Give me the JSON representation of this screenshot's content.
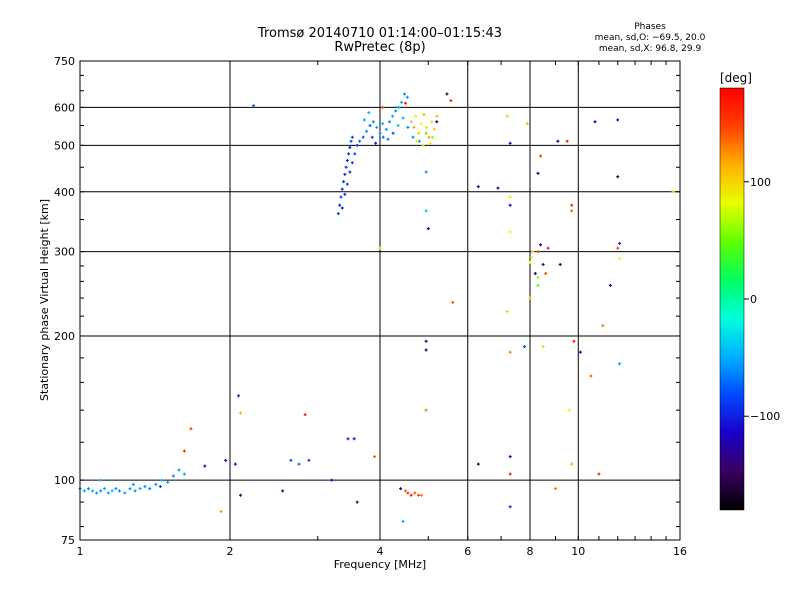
{
  "header": {
    "title_line1": "Tromsø 20140710 01:14:00–01:15:43",
    "title_line2": "RwPretec (8p)",
    "phase_title": "Phases",
    "phase_line1": "mean, sd,O: −69.5, 20.0",
    "phase_line2": "mean, sd,X:  96.8, 29.9"
  },
  "colorbar": {
    "unit_label": "[deg]",
    "ticks": [
      {
        "value": 100,
        "label": "100"
      },
      {
        "value": 0,
        "label": "0"
      },
      {
        "value": -100,
        "label": "−100"
      }
    ],
    "range": [
      -180,
      180
    ],
    "colors": [
      "#000000",
      "#3a0060",
      "#1a00c8",
      "#0048ff",
      "#00b0ff",
      "#00ffdc",
      "#00ff60",
      "#60ff00",
      "#e8ff00",
      "#ffb000",
      "#ff4000",
      "#ff0000"
    ]
  },
  "chart_data": {
    "type": "scatter",
    "xlabel": "Frequency [MHz]",
    "ylabel": "Stationary phase Virtual Height [km]",
    "x_scale": "log",
    "y_scale": "log",
    "xlim": [
      1,
      16
    ],
    "ylim": [
      75,
      750
    ],
    "x_ticks": [
      {
        "value": 1,
        "label": "1"
      },
      {
        "value": 2,
        "label": "2"
      },
      {
        "value": 4,
        "label": "4"
      },
      {
        "value": 6,
        "label": "6"
      },
      {
        "value": 8,
        "label": "8"
      },
      {
        "value": 10,
        "label": "10"
      },
      {
        "value": 16,
        "label": "16"
      }
    ],
    "y_ticks": [
      {
        "value": 75,
        "label": "75"
      },
      {
        "value": 100,
        "label": "100"
      },
      {
        "value": 200,
        "label": "200"
      },
      {
        "value": 300,
        "label": "300"
      },
      {
        "value": 400,
        "label": "400"
      },
      {
        "value": 500,
        "label": "500"
      },
      {
        "value": 600,
        "label": "600"
      },
      {
        "value": 750,
        "label": "750"
      }
    ],
    "gridlines_x": [
      2,
      4,
      6,
      8,
      10
    ],
    "gridlines_y": [
      100,
      200,
      300,
      400,
      500,
      600
    ],
    "grid": true,
    "points": [
      {
        "f": 1.0,
        "h": 96,
        "p": -60
      },
      {
        "f": 1.02,
        "h": 95,
        "p": -55
      },
      {
        "f": 1.04,
        "h": 96,
        "p": -60
      },
      {
        "f": 1.06,
        "h": 95,
        "p": -50
      },
      {
        "f": 1.08,
        "h": 94,
        "p": -55
      },
      {
        "f": 1.1,
        "h": 95,
        "p": -60
      },
      {
        "f": 1.12,
        "h": 96,
        "p": -50
      },
      {
        "f": 1.14,
        "h": 94,
        "p": -55
      },
      {
        "f": 1.16,
        "h": 95,
        "p": -45
      },
      {
        "f": 1.18,
        "h": 96,
        "p": -55
      },
      {
        "f": 1.2,
        "h": 95,
        "p": -60
      },
      {
        "f": 1.23,
        "h": 94,
        "p": -50
      },
      {
        "f": 1.26,
        "h": 96,
        "p": -55
      },
      {
        "f": 1.29,
        "h": 95,
        "p": -60
      },
      {
        "f": 1.32,
        "h": 96,
        "p": -50
      },
      {
        "f": 1.35,
        "h": 97,
        "p": -55
      },
      {
        "f": 1.38,
        "h": 96,
        "p": -60
      },
      {
        "f": 1.42,
        "h": 98,
        "p": -55
      },
      {
        "f": 1.46,
        "h": 100,
        "p": -50
      },
      {
        "f": 1.5,
        "h": 99,
        "p": -55
      },
      {
        "f": 1.54,
        "h": 102,
        "p": -60
      },
      {
        "f": 1.58,
        "h": 105,
        "p": -55
      },
      {
        "f": 1.62,
        "h": 103,
        "p": -50
      },
      {
        "f": 1.1,
        "h": 100,
        "p": -50
      },
      {
        "f": 1.28,
        "h": 98,
        "p": -55
      },
      {
        "f": 1.45,
        "h": 97,
        "p": -80
      },
      {
        "f": 1.62,
        "h": 115,
        "p": 160
      },
      {
        "f": 1.67,
        "h": 128,
        "p": 150
      },
      {
        "f": 1.78,
        "h": 107,
        "p": -130
      },
      {
        "f": 1.92,
        "h": 86,
        "p": 120
      },
      {
        "f": 1.96,
        "h": 110,
        "p": -120
      },
      {
        "f": 2.05,
        "h": 108,
        "p": -110
      },
      {
        "f": 2.08,
        "h": 150,
        "p": -100
      },
      {
        "f": 2.1,
        "h": 93,
        "p": -140
      },
      {
        "f": 2.1,
        "h": 138,
        "p": 110
      },
      {
        "f": 2.23,
        "h": 605,
        "p": -80
      },
      {
        "f": 2.55,
        "h": 95,
        "p": -140
      },
      {
        "f": 2.65,
        "h": 110,
        "p": -80
      },
      {
        "f": 2.75,
        "h": 108,
        "p": -70
      },
      {
        "f": 2.83,
        "h": 137,
        "p": 170
      },
      {
        "f": 2.88,
        "h": 110,
        "p": -90
      },
      {
        "f": 3.2,
        "h": 100,
        "p": -110
      },
      {
        "f": 3.45,
        "h": 122,
        "p": -100
      },
      {
        "f": 3.55,
        "h": 122,
        "p": -110
      },
      {
        "f": 3.6,
        "h": 90,
        "p": -150
      },
      {
        "f": 3.9,
        "h": 112,
        "p": 140
      },
      {
        "f": 4.0,
        "h": 305,
        "p": 100
      },
      {
        "f": 3.3,
        "h": 360,
        "p": -90
      },
      {
        "f": 3.32,
        "h": 375,
        "p": -100
      },
      {
        "f": 3.34,
        "h": 390,
        "p": -85
      },
      {
        "f": 3.36,
        "h": 405,
        "p": -95
      },
      {
        "f": 3.38,
        "h": 420,
        "p": -90
      },
      {
        "f": 3.4,
        "h": 435,
        "p": -100
      },
      {
        "f": 3.42,
        "h": 450,
        "p": -85
      },
      {
        "f": 3.44,
        "h": 465,
        "p": -95
      },
      {
        "f": 3.46,
        "h": 480,
        "p": -90
      },
      {
        "f": 3.48,
        "h": 495,
        "p": -100
      },
      {
        "f": 3.5,
        "h": 510,
        "p": -80
      },
      {
        "f": 3.52,
        "h": 520,
        "p": -90
      },
      {
        "f": 3.36,
        "h": 370,
        "p": -100
      },
      {
        "f": 3.4,
        "h": 395,
        "p": -90
      },
      {
        "f": 3.44,
        "h": 415,
        "p": -85
      },
      {
        "f": 3.48,
        "h": 440,
        "p": -100
      },
      {
        "f": 3.52,
        "h": 460,
        "p": -90
      },
      {
        "f": 3.56,
        "h": 480,
        "p": -80
      },
      {
        "f": 3.6,
        "h": 500,
        "p": -90
      },
      {
        "f": 3.64,
        "h": 510,
        "p": -70
      },
      {
        "f": 3.7,
        "h": 520,
        "p": -80
      },
      {
        "f": 3.76,
        "h": 535,
        "p": -60
      },
      {
        "f": 3.82,
        "h": 550,
        "p": -70
      },
      {
        "f": 3.88,
        "h": 560,
        "p": -60
      },
      {
        "f": 3.94,
        "h": 545,
        "p": -50
      },
      {
        "f": 4.0,
        "h": 530,
        "p": -60
      },
      {
        "f": 4.06,
        "h": 520,
        "p": -70
      },
      {
        "f": 4.12,
        "h": 540,
        "p": -55
      },
      {
        "f": 4.18,
        "h": 560,
        "p": -60
      },
      {
        "f": 4.24,
        "h": 575,
        "p": -50
      },
      {
        "f": 4.3,
        "h": 590,
        "p": -60
      },
      {
        "f": 4.36,
        "h": 600,
        "p": -55
      },
      {
        "f": 4.42,
        "h": 615,
        "p": -50
      },
      {
        "f": 4.48,
        "h": 640,
        "p": -60
      },
      {
        "f": 4.54,
        "h": 630,
        "p": -55
      },
      {
        "f": 3.72,
        "h": 565,
        "p": -55
      },
      {
        "f": 3.8,
        "h": 585,
        "p": -50
      },
      {
        "f": 3.86,
        "h": 520,
        "p": -90
      },
      {
        "f": 3.92,
        "h": 505,
        "p": -100
      },
      {
        "f": 4.05,
        "h": 555,
        "p": -45
      },
      {
        "f": 4.15,
        "h": 515,
        "p": -70
      },
      {
        "f": 4.25,
        "h": 530,
        "p": -80
      },
      {
        "f": 4.35,
        "h": 550,
        "p": -40
      },
      {
        "f": 4.45,
        "h": 570,
        "p": -45
      },
      {
        "f": 4.55,
        "h": 545,
        "p": -60
      },
      {
        "f": 4.62,
        "h": 560,
        "p": 110
      },
      {
        "f": 4.68,
        "h": 545,
        "p": 120
      },
      {
        "f": 4.72,
        "h": 575,
        "p": 90
      },
      {
        "f": 4.78,
        "h": 530,
        "p": 100
      },
      {
        "f": 4.84,
        "h": 555,
        "p": 80
      },
      {
        "f": 4.9,
        "h": 580,
        "p": 110
      },
      {
        "f": 4.96,
        "h": 545,
        "p": 95
      },
      {
        "f": 5.02,
        "h": 520,
        "p": 120
      },
      {
        "f": 5.08,
        "h": 560,
        "p": 90
      },
      {
        "f": 5.14,
        "h": 540,
        "p": 100
      },
      {
        "f": 5.2,
        "h": 575,
        "p": 110
      },
      {
        "f": 4.75,
        "h": 510,
        "p": 95
      },
      {
        "f": 4.88,
        "h": 500,
        "p": 100
      },
      {
        "f": 5.05,
        "h": 505,
        "p": 85
      },
      {
        "f": 4.66,
        "h": 520,
        "p": -60
      },
      {
        "f": 4.8,
        "h": 510,
        "p": -50
      },
      {
        "f": 4.95,
        "h": 530,
        "p": 40
      },
      {
        "f": 5.1,
        "h": 520,
        "p": 60
      },
      {
        "f": 4.05,
        "h": 600,
        "p": 150
      },
      {
        "f": 4.5,
        "h": 612,
        "p": 170
      },
      {
        "f": 5.2,
        "h": 560,
        "p": -140
      },
      {
        "f": 5.45,
        "h": 640,
        "p": -150
      },
      {
        "f": 5.55,
        "h": 620,
        "p": 160
      },
      {
        "f": 4.95,
        "h": 440,
        "p": -60
      },
      {
        "f": 4.95,
        "h": 365,
        "p": -40
      },
      {
        "f": 5.0,
        "h": 335,
        "p": -130
      },
      {
        "f": 4.95,
        "h": 195,
        "p": -120
      },
      {
        "f": 4.95,
        "h": 187,
        "p": -160
      },
      {
        "f": 4.95,
        "h": 140,
        "p": 130
      },
      {
        "f": 4.4,
        "h": 96,
        "p": -140
      },
      {
        "f": 4.5,
        "h": 95,
        "p": 140
      },
      {
        "f": 4.55,
        "h": 94,
        "p": 150
      },
      {
        "f": 4.62,
        "h": 93,
        "p": 160
      },
      {
        "f": 4.7,
        "h": 94,
        "p": 140
      },
      {
        "f": 4.78,
        "h": 93,
        "p": 150
      },
      {
        "f": 4.45,
        "h": 82,
        "p": -50
      },
      {
        "f": 4.85,
        "h": 93,
        "p": 130
      },
      {
        "f": 5.6,
        "h": 235,
        "p": 140
      },
      {
        "f": 6.3,
        "h": 410,
        "p": -130
      },
      {
        "f": 6.9,
        "h": 407,
        "p": -140
      },
      {
        "f": 6.3,
        "h": 108,
        "p": -150
      },
      {
        "f": 7.2,
        "h": 575,
        "p": 100
      },
      {
        "f": 7.3,
        "h": 505,
        "p": -110
      },
      {
        "f": 7.3,
        "h": 390,
        "p": 90
      },
      {
        "f": 7.3,
        "h": 375,
        "p": -120
      },
      {
        "f": 7.3,
        "h": 330,
        "p": 80
      },
      {
        "f": 7.2,
        "h": 225,
        "p": 100
      },
      {
        "f": 7.3,
        "h": 185,
        "p": 130
      },
      {
        "f": 7.3,
        "h": 112,
        "p": -130
      },
      {
        "f": 7.3,
        "h": 103,
        "p": 160
      },
      {
        "f": 7.3,
        "h": 88,
        "p": -90
      },
      {
        "f": 7.8,
        "h": 190,
        "p": -80
      },
      {
        "f": 7.9,
        "h": 555,
        "p": 110
      },
      {
        "f": 8.0,
        "h": 285,
        "p": 80
      },
      {
        "f": 8.05,
        "h": 292,
        "p": 90
      },
      {
        "f": 8.1,
        "h": 300,
        "p": 100
      },
      {
        "f": 8.2,
        "h": 270,
        "p": -130
      },
      {
        "f": 8.3,
        "h": 265,
        "p": 60
      },
      {
        "f": 8.3,
        "h": 300,
        "p": 150
      },
      {
        "f": 8.4,
        "h": 310,
        "p": -150
      },
      {
        "f": 8.5,
        "h": 282,
        "p": -140
      },
      {
        "f": 8.6,
        "h": 270,
        "p": 140
      },
      {
        "f": 8.7,
        "h": 305,
        "p": 170
      },
      {
        "f": 8.4,
        "h": 475,
        "p": 150
      },
      {
        "f": 8.3,
        "h": 437,
        "p": -130
      },
      {
        "f": 8.5,
        "h": 190,
        "p": 100
      },
      {
        "f": 8.3,
        "h": 255,
        "p": 40
      },
      {
        "f": 8.0,
        "h": 240,
        "p": 110
      },
      {
        "f": 9.1,
        "h": 510,
        "p": -140
      },
      {
        "f": 9.5,
        "h": 510,
        "p": 170
      },
      {
        "f": 9.2,
        "h": 282,
        "p": -140
      },
      {
        "f": 9.7,
        "h": 365,
        "p": 140
      },
      {
        "f": 9.7,
        "h": 375,
        "p": 160
      },
      {
        "f": 9.8,
        "h": 195,
        "p": 170
      },
      {
        "f": 9.6,
        "h": 140,
        "p": 80
      },
      {
        "f": 9.7,
        "h": 108,
        "p": 50
      },
      {
        "f": 9.0,
        "h": 96,
        "p": 130
      },
      {
        "f": 10.1,
        "h": 185,
        "p": -110
      },
      {
        "f": 10.6,
        "h": 165,
        "p": 140
      },
      {
        "f": 10.8,
        "h": 560,
        "p": -130
      },
      {
        "f": 11.0,
        "h": 103,
        "p": 160
      },
      {
        "f": 11.2,
        "h": 210,
        "p": 130
      },
      {
        "f": 11.6,
        "h": 255,
        "p": -120
      },
      {
        "f": 12.0,
        "h": 565,
        "p": -130
      },
      {
        "f": 12.0,
        "h": 430,
        "p": -150
      },
      {
        "f": 12.0,
        "h": 305,
        "p": 150
      },
      {
        "f": 12.1,
        "h": 312,
        "p": -90
      },
      {
        "f": 12.1,
        "h": 290,
        "p": 90
      },
      {
        "f": 12.1,
        "h": 175,
        "p": -50
      },
      {
        "f": 15.5,
        "h": 400,
        "p": 100
      }
    ]
  }
}
